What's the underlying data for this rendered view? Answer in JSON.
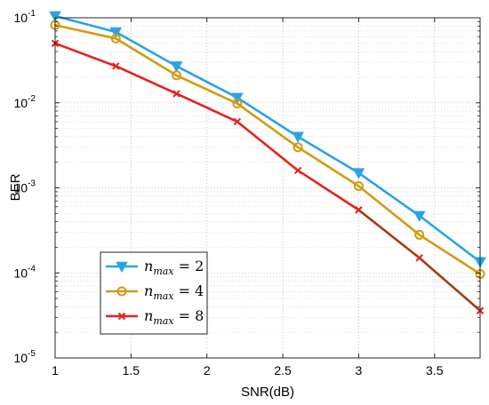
{
  "chart_data": {
    "type": "line",
    "xlabel": "SNR(dB)",
    "ylabel": "BER",
    "x_scale": "linear",
    "y_scale": "log",
    "xlim": [
      1,
      3.8
    ],
    "ylim": [
      1e-05,
      0.1
    ],
    "x_ticks": [
      "1",
      "1.5",
      "2",
      "2.5",
      "3",
      "3.5"
    ],
    "x_tick_values": [
      1,
      1.5,
      2,
      2.5,
      3,
      3.5
    ],
    "y_ticks": [
      {
        "base": "10",
        "exp": "-5"
      },
      {
        "base": "10",
        "exp": "-4"
      },
      {
        "base": "10",
        "exp": "-3"
      },
      {
        "base": "10",
        "exp": "-2"
      },
      {
        "base": "10",
        "exp": "-1"
      }
    ],
    "y_tick_values": [
      1e-05,
      0.0001,
      0.001,
      0.01,
      0.1
    ],
    "grid": true,
    "minor_grid": true,
    "legend_position": "bottom-left",
    "x": [
      1,
      1.4,
      1.8,
      2.2,
      2.6,
      3,
      3.4,
      3.8
    ],
    "series": [
      {
        "name": "n_max = 2",
        "legend": {
          "var": "n",
          "sub": "max",
          "rhs": "= 2"
        },
        "color": "#2aa3e8",
        "marker": "triangle-down",
        "values": [
          0.105,
          0.068,
          0.027,
          0.0115,
          0.004,
          0.0015,
          0.00047,
          0.000135
        ]
      },
      {
        "name": "n_max = 4",
        "legend": {
          "var": "n",
          "sub": "max",
          "rhs": "= 4"
        },
        "color": "#d49a10",
        "marker": "circle",
        "values": [
          0.082,
          0.057,
          0.021,
          0.0098,
          0.003,
          0.00105,
          0.00028,
          9.7e-05
        ]
      },
      {
        "name": "n_max = 8",
        "legend": {
          "var": "n",
          "sub": "max",
          "rhs": "= 8"
        },
        "color": "#e8201c",
        "line_color_after_x3": "#a33b14",
        "marker": "x",
        "values": [
          0.05,
          0.027,
          0.0128,
          0.006,
          0.0016,
          0.00055,
          0.00015,
          3.6e-05
        ]
      }
    ]
  }
}
